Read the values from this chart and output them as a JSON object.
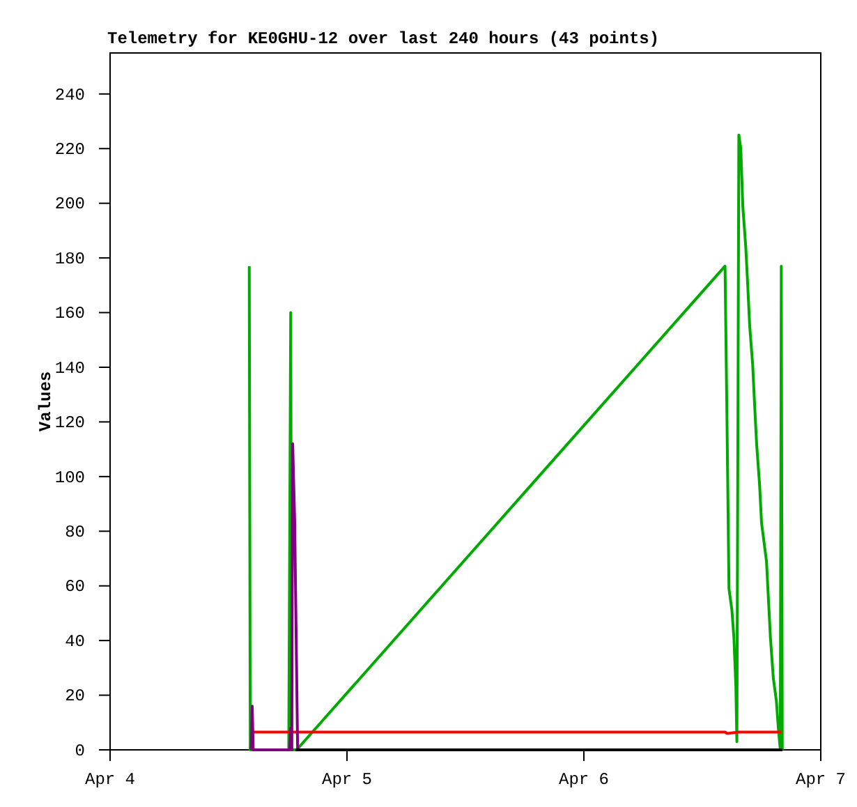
{
  "chart_data": {
    "type": "line",
    "title": "Telemetry for KE0GHU-12 over last 240 hours (43 points)",
    "ylabel": "Values",
    "xlim": [
      "--04-04",
      "--04-07"
    ],
    "xticks": [
      {
        "value": "--04-04",
        "label": "Apr 4"
      },
      {
        "value": "--04-05",
        "label": "Apr 5"
      },
      {
        "value": "--04-06",
        "label": "Apr 6"
      },
      {
        "value": "--04-07",
        "label": "Apr 7"
      }
    ],
    "ylim": [
      0,
      255
    ],
    "yticks": [
      0,
      20,
      40,
      60,
      80,
      100,
      120,
      140,
      160,
      180,
      200,
      220,
      240
    ],
    "grid": false,
    "marker": "none",
    "line_style": "solid",
    "series": [
      {
        "color": "#00aa00",
        "x": [
          "--04-04T14:06",
          "--04-04T14:12",
          "--04-04T18:06",
          "--04-04T18:12",
          "--04-04T18:18",
          "--04-04T18:24",
          "--04-04T18:54",
          "--04-06T14:18",
          "--04-06T14:30",
          "--04-06T14:42",
          "--04-06T15:00",
          "--04-06T15:12",
          "--04-06T15:24",
          "--04-06T15:30",
          "--04-06T15:36",
          "--04-06T15:42",
          "--04-06T15:54",
          "--04-06T16:06",
          "--04-06T16:24",
          "--04-06T16:36",
          "--04-06T16:48",
          "--04-06T17:06",
          "--04-06T17:18",
          "--04-06T17:30",
          "--04-06T17:48",
          "--04-06T18:00",
          "--04-06T18:30",
          "--04-06T18:42",
          "--04-06T18:54",
          "--04-06T19:12",
          "--04-06T19:30",
          "--04-06T19:42",
          "--04-06T19:54",
          "--04-06T20:00",
          "--04-06T20:06"
        ],
        "values": [
          177,
          0,
          0,
          80,
          160,
          0,
          0,
          177,
          120,
          59,
          51,
          41,
          23,
          3,
          113,
          225,
          220,
          199,
          184,
          170,
          155,
          141,
          126,
          112,
          97,
          83,
          69,
          55,
          41,
          26,
          18,
          8,
          0,
          177,
          0
        ]
      },
      {
        "color": "#ff0000",
        "x": [
          "--04-04T14:18",
          "--04-06T14:18",
          "--04-06T14:30",
          "--04-06T15:42",
          "--04-06T20:00"
        ],
        "values": [
          6.5,
          6.5,
          6,
          6.5,
          6.5
        ]
      },
      {
        "color": "#800080",
        "x": [
          "--04-04T14:18",
          "--04-04T14:24",
          "--04-04T14:30",
          "--04-04T18:12",
          "--04-04T18:18",
          "--04-04T18:24",
          "--04-04T18:30",
          "--04-04T18:42",
          "--04-04T18:54",
          "--04-04T19:00"
        ],
        "values": [
          0,
          16,
          0,
          0,
          8,
          0,
          112,
          84,
          28,
          0
        ]
      },
      {
        "color": "#000000",
        "x": [
          "--04-04T18:48",
          "--04-06T20:06"
        ],
        "values": [
          0,
          0
        ]
      }
    ]
  }
}
